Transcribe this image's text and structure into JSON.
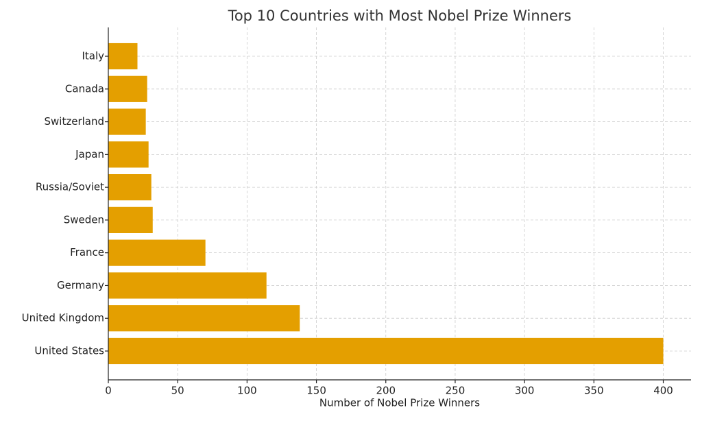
{
  "chart_data": {
    "type": "barh",
    "title": "Top 10 Countries with Most Nobel Prize Winners",
    "x_label": "Number of Nobel Prize Winners",
    "categories": [
      "United States",
      "United Kingdom",
      "Germany",
      "France",
      "Sweden",
      "Russia/Soviet",
      "Japan",
      "Switzerland",
      "Canada",
      "Italy"
    ],
    "values": [
      400,
      138,
      114,
      70,
      32,
      31,
      29,
      27,
      28,
      21
    ],
    "color": "#e49f00",
    "xlim": [
      0,
      420
    ],
    "xticks": [
      0,
      50,
      100,
      150,
      200,
      250,
      300,
      350,
      400
    ],
    "grid": true
  }
}
